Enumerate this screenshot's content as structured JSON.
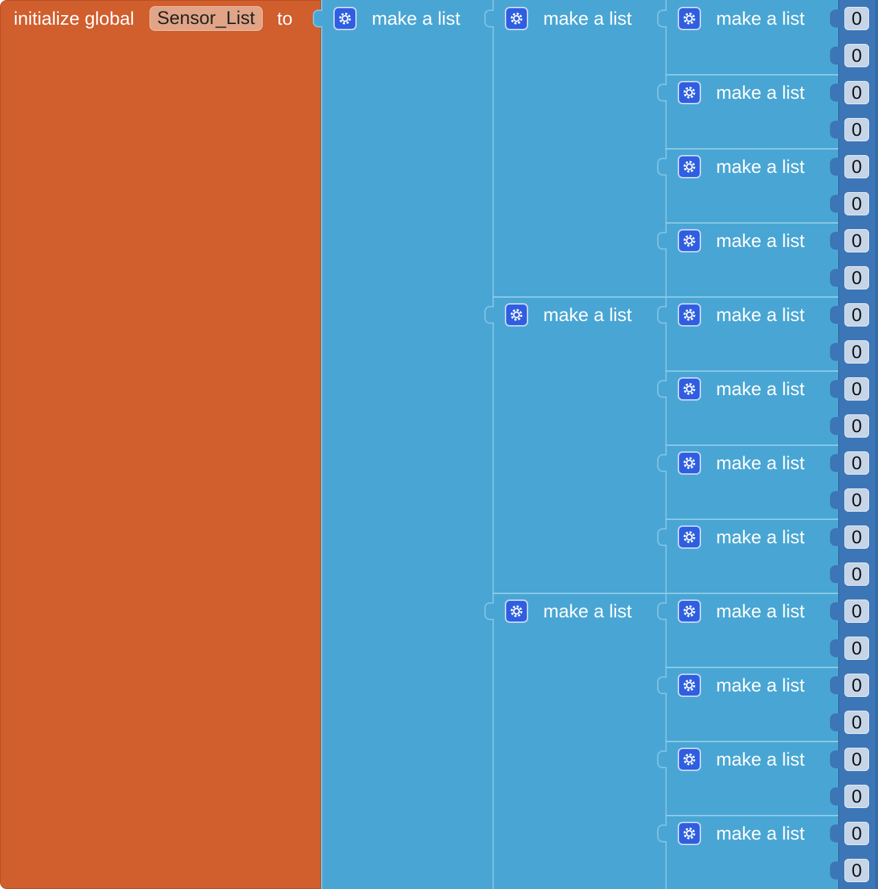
{
  "global": {
    "prefix": "initialize global",
    "name": "Sensor_List",
    "suffix": "to"
  },
  "block_label": "make a list",
  "icons": {
    "mutator": "gear-icon"
  },
  "colors": {
    "variables": "#d15e2d",
    "lists": "#49a6d4",
    "math": "#3c76b7",
    "mutator": "#2f5fe0"
  },
  "structure": [
    [
      [
        0,
        0
      ],
      [
        0,
        0
      ],
      [
        0,
        0
      ],
      [
        0,
        0
      ]
    ],
    [
      [
        0,
        0
      ],
      [
        0,
        0
      ],
      [
        0,
        0
      ],
      [
        0,
        0
      ]
    ],
    [
      [
        0,
        0
      ],
      [
        0,
        0
      ],
      [
        0,
        0
      ],
      [
        0,
        0
      ]
    ]
  ]
}
